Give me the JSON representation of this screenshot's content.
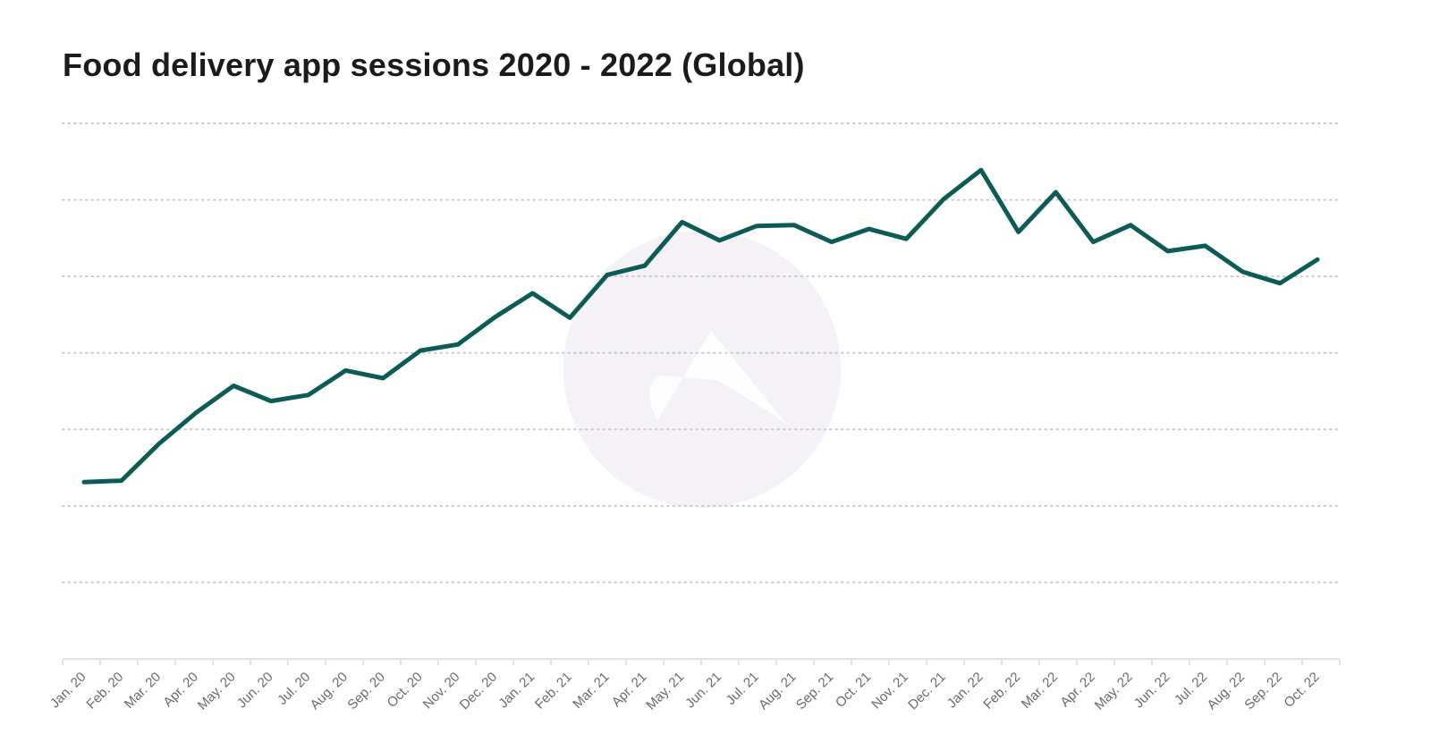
{
  "page": {
    "title": "Food delivery app sessions 2020 - 2022 (Global)"
  },
  "chart_data": {
    "type": "line",
    "title": "Food delivery app sessions 2020 - 2022 (Global)",
    "xlabel": "",
    "ylabel": "",
    "y_tick_labels_shown": false,
    "grid": {
      "horizontal": true,
      "style": "dotted",
      "lines": 7
    },
    "legend": "none",
    "watermark": "logo",
    "color": "#0c5b57",
    "categories": [
      "Jan. 20",
      "Feb. 20",
      "Mar. 20",
      "Apr. 20",
      "May. 20",
      "Jun. 20",
      "Jul. 20",
      "Aug. 20",
      "Sep. 20",
      "Oct. 20",
      "Nov. 20",
      "Dec. 20",
      "Jan. 21",
      "Feb. 21",
      "Mar. 21",
      "Apr. 21",
      "May. 21",
      "Jun. 21",
      "Jul. 21",
      "Aug. 21",
      "Sep. 21",
      "Oct. 21",
      "Nov. 21",
      "Dec. 21",
      "Jan. 22",
      "Feb. 22",
      "Mar. 22",
      "Apr. 22",
      "May. 22",
      "Jun. 22",
      "Jul. 22",
      "Aug. 22",
      "Sep. 22",
      "Oct. 22"
    ],
    "series": [
      {
        "values": [
          2.31,
          2.33,
          2.81,
          3.22,
          3.57,
          3.37,
          3.45,
          3.77,
          3.67,
          4.03,
          4.11,
          4.47,
          4.78,
          4.46,
          5.02,
          5.14,
          5.71,
          5.47,
          5.66,
          5.67,
          5.45,
          5.62,
          5.49,
          6.01,
          6.39,
          5.58,
          6.1,
          5.45,
          5.67,
          5.33,
          5.4,
          5.06,
          4.91,
          5.22
        ]
      }
    ],
    "ylim": [
      0,
      7
    ]
  }
}
